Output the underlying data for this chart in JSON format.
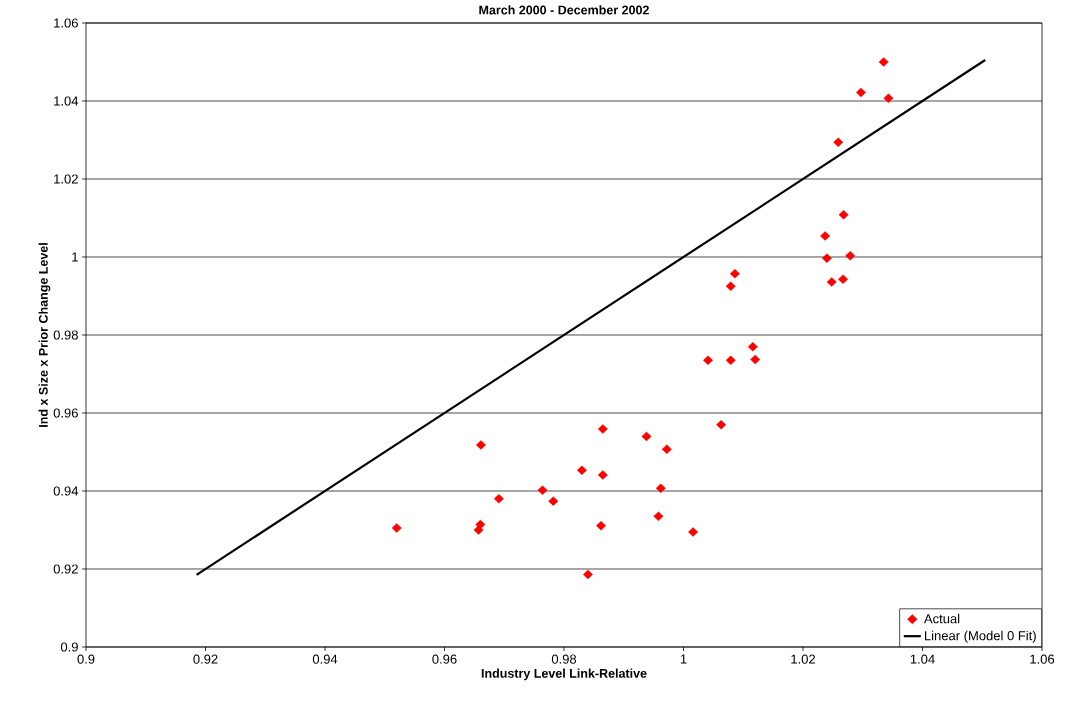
{
  "chart_data": {
    "type": "scatter",
    "title": "March 2000 - December 2002",
    "xlabel": "Industry Level Link-Relative",
    "ylabel": "Ind x Size x Prior Change Level",
    "xlim": [
      0.9,
      1.06
    ],
    "xticks": [
      0.9,
      0.92,
      0.94,
      0.96,
      0.98,
      1,
      1.02,
      1.04,
      1.06
    ],
    "ylim": [
      0.9,
      1.06
    ],
    "yticks": [
      0.9,
      0.92,
      0.94,
      0.96,
      0.98,
      1,
      1.02,
      1.04,
      1.06
    ],
    "grid": "y",
    "legend": "bottom right",
    "series": [
      {
        "name": "Actual",
        "marker": "diamond",
        "color": "#ff0000",
        "x": [
          1.0335,
          1.0297,
          1.0343,
          1.0259,
          1.0268,
          1.0237,
          1.024,
          1.0279,
          1.0248,
          1.0267,
          1.0086,
          1.0079,
          1.0116,
          1.012,
          1.0041,
          1.0079,
          0.9661,
          0.9865,
          0.9938,
          0.9972,
          1.0063,
          0.983,
          0.9865,
          0.9764,
          0.9691,
          0.9782,
          0.9962,
          0.966,
          0.9657,
          0.9862,
          0.9958,
          1.0016,
          0.984,
          0.952
        ],
        "values": [
          1.05,
          1.0422,
          1.0407,
          1.0294,
          1.0108,
          1.0054,
          0.9997,
          1.0003,
          0.9936,
          0.9943,
          0.9957,
          0.9925,
          0.977,
          0.9737,
          0.9735,
          0.9735,
          0.9518,
          0.9559,
          0.954,
          0.9507,
          0.957,
          0.9453,
          0.9441,
          0.9402,
          0.938,
          0.9374,
          0.9407,
          0.9314,
          0.93,
          0.9311,
          0.9335,
          0.9295,
          0.9186,
          0.9305
        ]
      },
      {
        "name": "Linear (Model 0 Fit)",
        "type": "line",
        "color": "#000000",
        "x": [
          0.9185,
          1.0505
        ],
        "values": [
          0.9185,
          1.0505
        ]
      }
    ]
  }
}
